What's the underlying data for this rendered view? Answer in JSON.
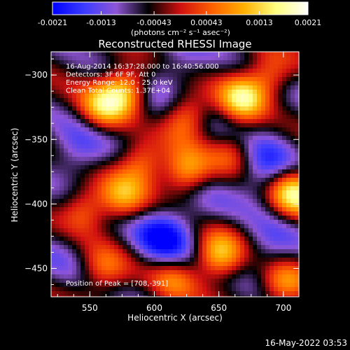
{
  "colorbar": {
    "tick_labels": [
      "-0.0021",
      "-0.0013",
      "-0.00043",
      "0.00043",
      "0.0013",
      "0.0021"
    ],
    "tick_values": [
      -0.0021,
      -0.0013,
      -0.00043,
      0.00043,
      0.0013,
      0.0021
    ],
    "range": [
      -0.0021,
      0.0021
    ],
    "units": "(photons cm⁻² s⁻¹ asec⁻²)",
    "colors": [
      "#0000ff",
      "#3c3cff",
      "#8f56d6",
      "#000000",
      "#d01010",
      "#ff6000",
      "#ffb000",
      "#ffff80",
      "#ffffff"
    ]
  },
  "chart_data": {
    "type": "heatmap",
    "title": "Reconstructed RHESSI Image",
    "xlabel": "Heliocentric X (arcsec)",
    "ylabel": "Heliocentric Y (arcsec)",
    "xlim": [
      520,
      712
    ],
    "ylim": [
      -472,
      -282
    ],
    "x_ticks": [
      550,
      600,
      650,
      700
    ],
    "y_ticks": [
      -300,
      -350,
      -400,
      -450
    ],
    "x_tick_labels": [
      "550",
      "600",
      "650",
      "700"
    ],
    "y_tick_labels": [
      "−300",
      "−350",
      "−400",
      "−450"
    ],
    "annotations": [
      "16-Aug-2014 16:37:28.000 to 16:40:56.000",
      "Detectors: 3F 6F 9F, Att 0",
      "Energy Range: 12.0 - 25.0 keV",
      "Clean     Total Counts: 1.37E+04"
    ],
    "peak_label": "Position of Peak = [708,-391]",
    "peak": [
      708,
      -391
    ],
    "hot_spots": [
      {
        "x": 560,
        "y": -325,
        "v": 0.0015
      },
      {
        "x": 578,
        "y": -312,
        "v": 0.0018
      },
      {
        "x": 625,
        "y": -332,
        "v": 0.0014
      },
      {
        "x": 668,
        "y": -318,
        "v": 0.0019
      },
      {
        "x": 690,
        "y": -300,
        "v": 0.0012
      },
      {
        "x": 590,
        "y": -368,
        "v": 0.0013
      },
      {
        "x": 625,
        "y": -375,
        "v": 0.0016
      },
      {
        "x": 660,
        "y": -360,
        "v": 0.001
      },
      {
        "x": 708,
        "y": -391,
        "v": 0.0021
      },
      {
        "x": 545,
        "y": -405,
        "v": 0.0012
      },
      {
        "x": 575,
        "y": -395,
        "v": 0.0013
      },
      {
        "x": 560,
        "y": -452,
        "v": 0.0011
      },
      {
        "x": 650,
        "y": -440,
        "v": 0.0018
      },
      {
        "x": 615,
        "y": -458,
        "v": 0.001
      },
      {
        "x": 700,
        "y": -462,
        "v": 0.0014
      }
    ],
    "cold_spots": [
      {
        "x": 540,
        "y": -360,
        "v": -0.0014
      },
      {
        "x": 595,
        "y": -325,
        "v": -0.0011
      },
      {
        "x": 620,
        "y": -290,
        "v": -0.0012
      },
      {
        "x": 648,
        "y": -345,
        "v": -0.0009
      },
      {
        "x": 608,
        "y": -425,
        "v": -0.0021
      },
      {
        "x": 685,
        "y": -372,
        "v": -0.0017
      },
      {
        "x": 690,
        "y": -435,
        "v": -0.0013
      },
      {
        "x": 530,
        "y": -435,
        "v": -0.001
      },
      {
        "x": 700,
        "y": -320,
        "v": -0.0008
      },
      {
        "x": 640,
        "y": -400,
        "v": -0.0009
      }
    ]
  },
  "footer": {
    "timestamp": "16-May-2022 03:53"
  }
}
